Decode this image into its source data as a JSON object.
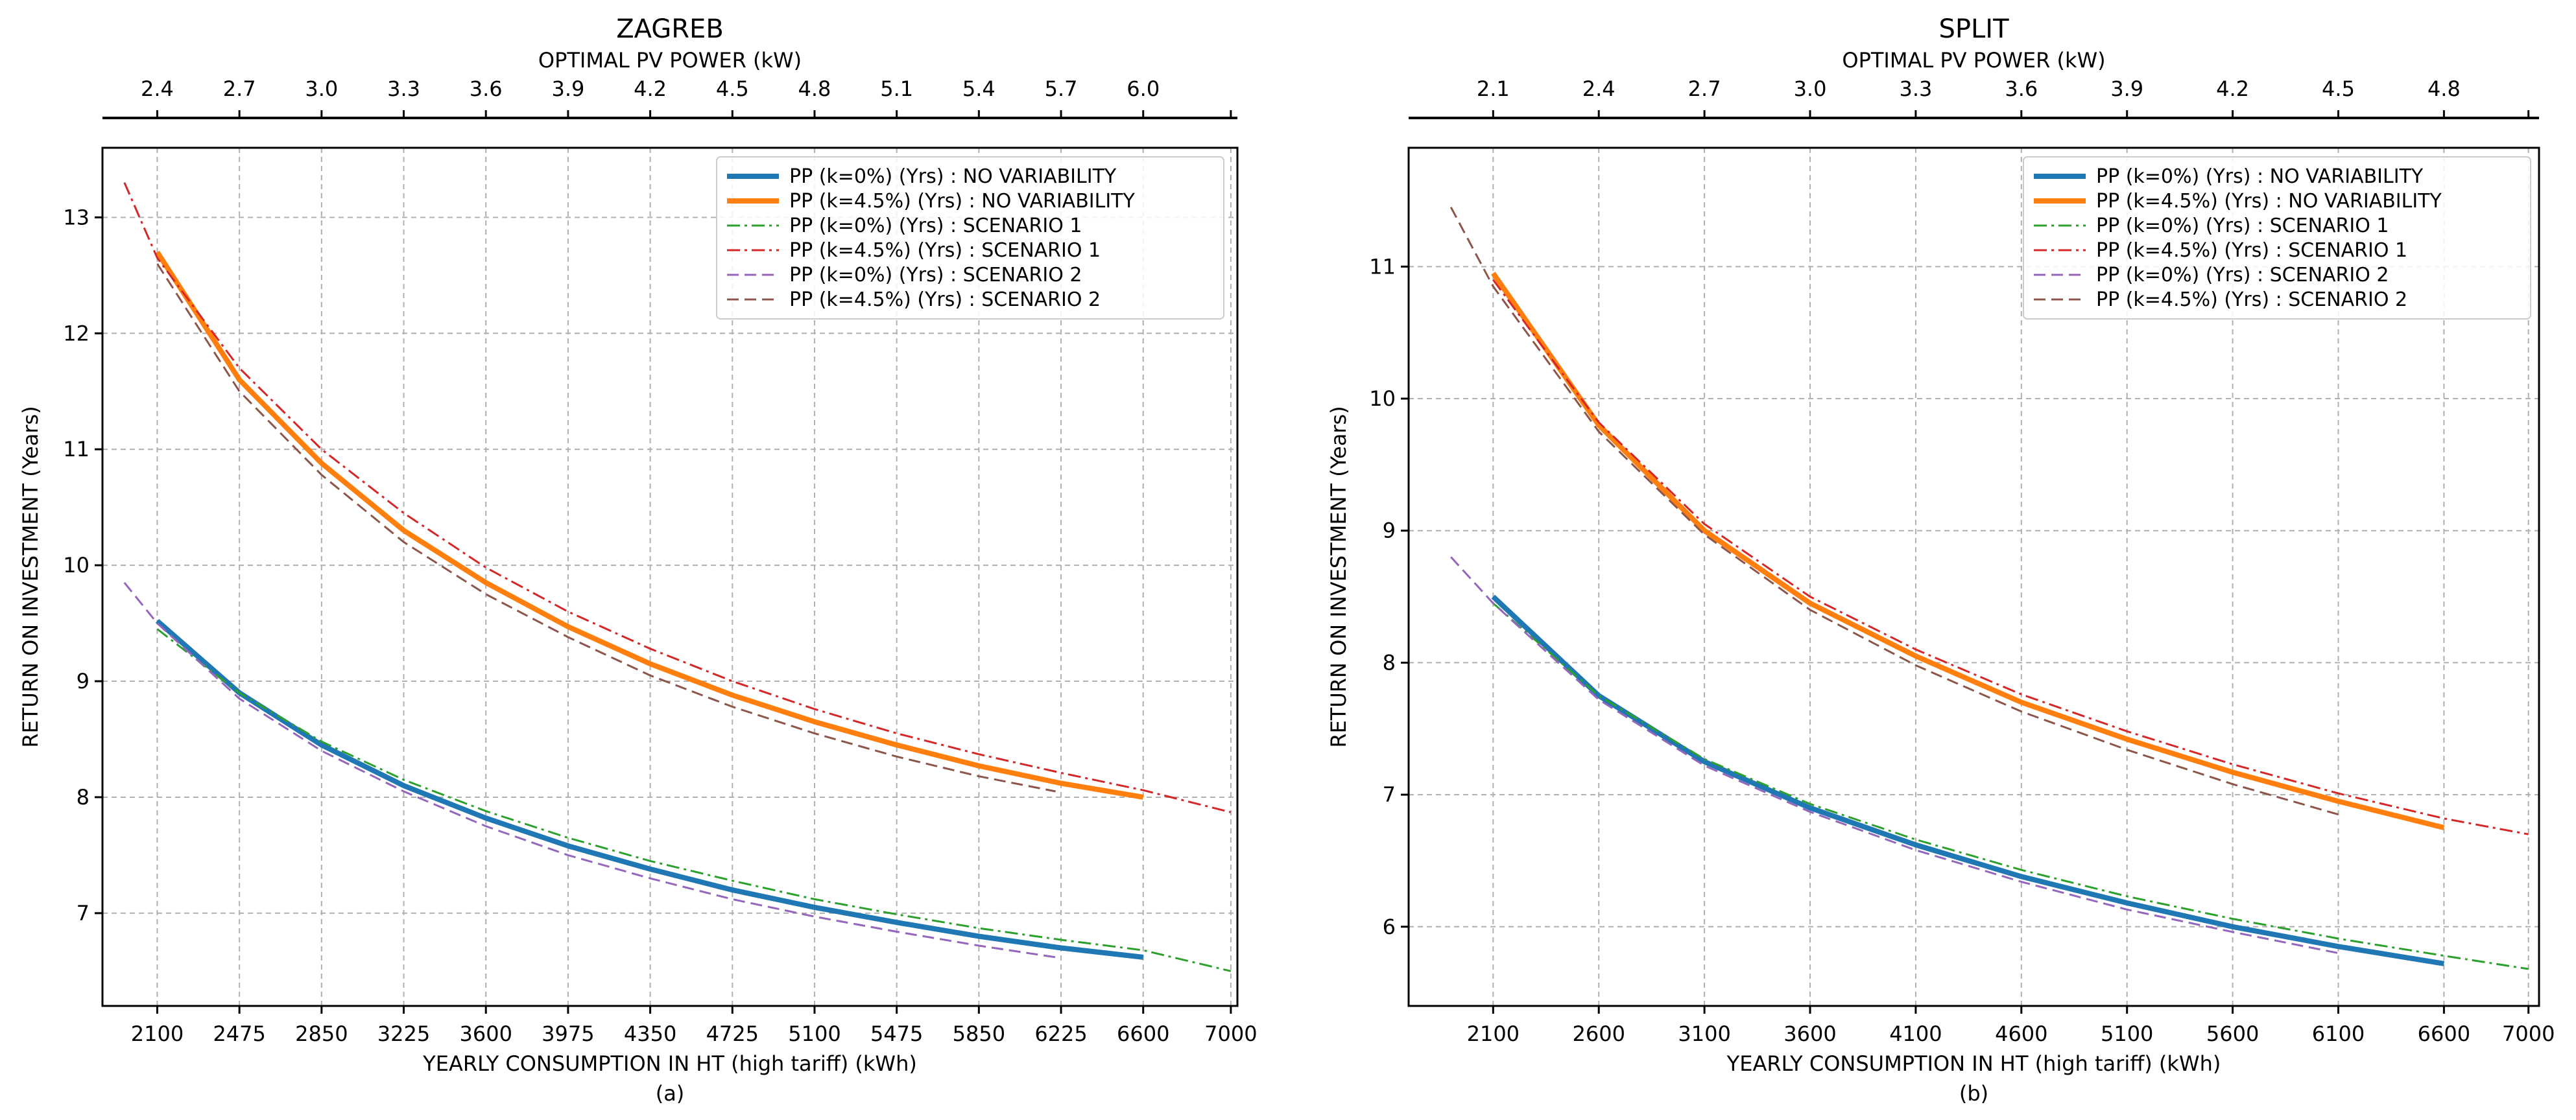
{
  "chart_data": [
    {
      "id": "zagreb",
      "type": "line",
      "title": "ZAGREB",
      "top_xlabel": "OPTIMAL PV POWER (kW)",
      "xlabel": "YEARLY CONSUMPTION IN HT (high tariff) (kWh)",
      "sublabel": "(a)",
      "ylabel": "RETURN ON INVESTMENT (Years)",
      "xlim": [
        1850,
        7030
      ],
      "ylim": [
        6.2,
        13.6
      ],
      "xticks": [
        2100,
        2475,
        2850,
        3225,
        3600,
        3975,
        4350,
        4725,
        5100,
        5475,
        5850,
        6225,
        6600,
        7000
      ],
      "yticks": [
        7,
        8,
        9,
        10,
        11,
        12,
        13
      ],
      "top_ticks": [
        {
          "label": "2.4",
          "at": 2100
        },
        {
          "label": "2.7",
          "at": 2475
        },
        {
          "label": "3.0",
          "at": 2850
        },
        {
          "label": "3.3",
          "at": 3225
        },
        {
          "label": "3.6",
          "at": 3600
        },
        {
          "label": "3.9",
          "at": 3975
        },
        {
          "label": "4.2",
          "at": 4350
        },
        {
          "label": "4.5",
          "at": 4725
        },
        {
          "label": "4.8",
          "at": 5100
        },
        {
          "label": "5.1",
          "at": 5475
        },
        {
          "label": "5.4",
          "at": 5850
        },
        {
          "label": "5.7",
          "at": 6225
        },
        {
          "label": "6.0",
          "at": 6600
        },
        {
          "label": "",
          "at": 7000
        }
      ],
      "grid": true,
      "legend_position": "upper right",
      "series": [
        {
          "name": "PP (k=0%) (Yrs) : NO VARIABILITY",
          "color": "#1f77b4",
          "style": "solid",
          "width": 8,
          "x_start": 2100,
          "x_end": 6600,
          "x": [
            2100,
            2475,
            2850,
            3225,
            3600,
            3975,
            4350,
            4725,
            5100,
            5475,
            5850,
            6225,
            6600
          ],
          "y": [
            9.52,
            8.9,
            8.45,
            8.1,
            7.82,
            7.58,
            7.38,
            7.2,
            7.05,
            6.92,
            6.8,
            6.7,
            6.62
          ]
        },
        {
          "name": "PP (k=4.5%) (Yrs) : NO VARIABILITY",
          "color": "#ff7f0e",
          "style": "solid",
          "width": 8,
          "x_start": 2100,
          "x_end": 6600,
          "x": [
            2100,
            2475,
            2850,
            3225,
            3600,
            3975,
            4350,
            4725,
            5100,
            5475,
            5850,
            6225,
            6600
          ],
          "y": [
            12.7,
            11.6,
            10.88,
            10.3,
            9.85,
            9.47,
            9.15,
            8.88,
            8.65,
            8.45,
            8.27,
            8.12,
            8.0
          ]
        },
        {
          "name": "PP (k=0%) (Yrs) : SCENARIO 1",
          "color": "#2ca02c",
          "style": "dashdot",
          "width": 3,
          "x_start": 2100,
          "x_end": 7000,
          "x": [
            2100,
            2475,
            2850,
            3225,
            3600,
            3975,
            4350,
            4725,
            5100,
            5475,
            5850,
            6225,
            6600,
            7000
          ],
          "y": [
            9.45,
            8.9,
            8.48,
            8.15,
            7.88,
            7.65,
            7.45,
            7.28,
            7.12,
            6.99,
            6.87,
            6.77,
            6.68,
            6.5
          ]
        },
        {
          "name": "PP (k=4.5%) (Yrs) : SCENARIO 1",
          "color": "#d62728",
          "style": "dashdot",
          "width": 3,
          "x_start": 1950,
          "x_end": 7000,
          "x": [
            1950,
            2100,
            2475,
            2850,
            3225,
            3600,
            3975,
            4350,
            4725,
            5100,
            5475,
            5850,
            6225,
            6600,
            7000
          ],
          "y": [
            13.3,
            12.65,
            11.7,
            11.0,
            10.45,
            9.98,
            9.6,
            9.28,
            9.0,
            8.76,
            8.55,
            8.37,
            8.21,
            8.06,
            7.87
          ]
        },
        {
          "name": "PP (k=0%) (Yrs) : SCENARIO 2",
          "color": "#9467bd",
          "style": "dashed",
          "width": 3,
          "x_start": 1950,
          "x_end": 6200,
          "x": [
            1950,
            2100,
            2475,
            2850,
            3225,
            3600,
            3975,
            4350,
            4725,
            5100,
            5475,
            5850,
            6200
          ],
          "y": [
            9.85,
            9.5,
            8.85,
            8.4,
            8.05,
            7.75,
            7.5,
            7.3,
            7.12,
            6.97,
            6.84,
            6.72,
            6.62
          ]
        },
        {
          "name": "PP (k=4.5%) (Yrs) : SCENARIO 2",
          "color": "#8c564b",
          "style": "dashed",
          "width": 3,
          "x_start": 2100,
          "x_end": 6200,
          "x": [
            2100,
            2475,
            2850,
            3225,
            3600,
            3975,
            4350,
            4725,
            5100,
            5475,
            5850,
            6200
          ],
          "y": [
            12.6,
            11.5,
            10.78,
            10.2,
            9.75,
            9.38,
            9.05,
            8.78,
            8.55,
            8.35,
            8.18,
            8.05
          ]
        }
      ]
    },
    {
      "id": "split",
      "type": "line",
      "title": "SPLIT",
      "top_xlabel": "OPTIMAL PV POWER (kW)",
      "xlabel": "YEARLY CONSUMPTION IN HT (high tariff) (kWh)",
      "sublabel": "(b)",
      "ylabel": "RETURN ON INVESTMENT (Years)",
      "xlim": [
        1700,
        7050
      ],
      "ylim": [
        5.4,
        11.9
      ],
      "xticks": [
        2100,
        2600,
        3100,
        3600,
        4100,
        4600,
        5100,
        5600,
        6100,
        6600,
        7000
      ],
      "yticks": [
        6,
        7,
        8,
        9,
        10,
        11
      ],
      "top_ticks": [
        {
          "label": "2.1",
          "at": 2100
        },
        {
          "label": "2.4",
          "at": 2600
        },
        {
          "label": "2.7",
          "at": 3100
        },
        {
          "label": "3.0",
          "at": 3600
        },
        {
          "label": "3.3",
          "at": 4100
        },
        {
          "label": "3.6",
          "at": 4600
        },
        {
          "label": "3.9",
          "at": 5100
        },
        {
          "label": "4.2",
          "at": 5600
        },
        {
          "label": "4.5",
          "at": 6100
        },
        {
          "label": "4.8",
          "at": 6600
        },
        {
          "label": "",
          "at": 7000
        }
      ],
      "grid": true,
      "legend_position": "upper right",
      "series": [
        {
          "name": "PP (k=0%) (Yrs) : NO VARIABILITY",
          "color": "#1f77b4",
          "style": "solid",
          "width": 8,
          "x_start": 2100,
          "x_end": 6600,
          "x": [
            2100,
            2600,
            3100,
            3600,
            4100,
            4600,
            5100,
            5600,
            6100,
            6600
          ],
          "y": [
            8.5,
            7.75,
            7.25,
            6.9,
            6.62,
            6.38,
            6.18,
            6.0,
            5.85,
            5.72
          ]
        },
        {
          "name": "PP (k=4.5%) (Yrs) : NO VARIABILITY",
          "color": "#ff7f0e",
          "style": "solid",
          "width": 8,
          "x_start": 2100,
          "x_end": 6600,
          "x": [
            2100,
            2600,
            3100,
            3600,
            4100,
            4600,
            5100,
            5600,
            6100,
            6600
          ],
          "y": [
            10.95,
            9.8,
            9.0,
            8.45,
            8.05,
            7.7,
            7.42,
            7.17,
            6.95,
            6.75
          ]
        },
        {
          "name": "PP (k=0%) (Yrs) : SCENARIO 1",
          "color": "#2ca02c",
          "style": "dashdot",
          "width": 3,
          "x_start": 2100,
          "x_end": 7000,
          "x": [
            2100,
            2600,
            3100,
            3600,
            4100,
            4600,
            5100,
            5600,
            6100,
            6600,
            7000
          ],
          "y": [
            8.45,
            7.75,
            7.27,
            6.93,
            6.66,
            6.43,
            6.23,
            6.06,
            5.91,
            5.78,
            5.68
          ]
        },
        {
          "name": "PP (k=4.5%) (Yrs) : SCENARIO 1",
          "color": "#d62728",
          "style": "dashdot",
          "width": 3,
          "x_start": 2100,
          "x_end": 7000,
          "x": [
            2100,
            2600,
            3100,
            3600,
            4100,
            4600,
            5100,
            5600,
            6100,
            6600,
            7000
          ],
          "y": [
            10.9,
            9.82,
            9.05,
            8.5,
            8.1,
            7.76,
            7.48,
            7.23,
            7.01,
            6.82,
            6.7
          ]
        },
        {
          "name": "PP (k=0%) (Yrs) : SCENARIO 2",
          "color": "#9467bd",
          "style": "dashed",
          "width": 3,
          "x_start": 1900,
          "x_end": 6100,
          "x": [
            1900,
            2100,
            2600,
            3100,
            3600,
            4100,
            4600,
            5100,
            5600,
            6100
          ],
          "y": [
            8.8,
            8.45,
            7.72,
            7.22,
            6.87,
            6.58,
            6.34,
            6.13,
            5.96,
            5.8
          ]
        },
        {
          "name": "PP (k=4.5%) (Yrs) : SCENARIO 2",
          "color": "#8c564b",
          "style": "dashed",
          "width": 3,
          "x_start": 1900,
          "x_end": 6100,
          "x": [
            1900,
            2100,
            2600,
            3100,
            3600,
            4100,
            4600,
            5100,
            5600,
            6100
          ],
          "y": [
            11.45,
            10.85,
            9.75,
            8.97,
            8.4,
            7.98,
            7.63,
            7.34,
            7.08,
            6.85
          ]
        }
      ]
    }
  ]
}
